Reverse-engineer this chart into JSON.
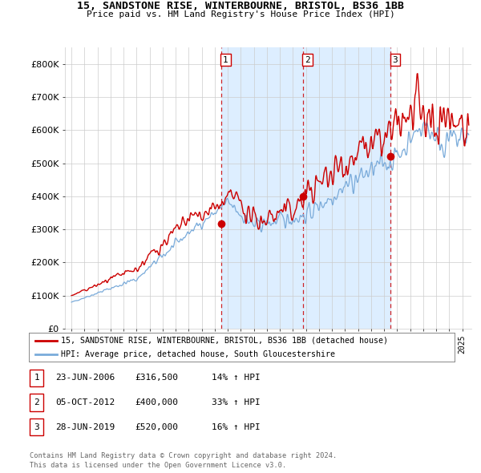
{
  "title": "15, SANDSTONE RISE, WINTERBOURNE, BRISTOL, BS36 1BB",
  "subtitle": "Price paid vs. HM Land Registry's House Price Index (HPI)",
  "legend_line1": "15, SANDSTONE RISE, WINTERBOURNE, BRISTOL, BS36 1BB (detached house)",
  "legend_line2": "HPI: Average price, detached house, South Gloucestershire",
  "sale_year_nums": [
    2006.474,
    2012.756,
    2019.493
  ],
  "sale_prices": [
    316500,
    400000,
    520000
  ],
  "sale_labels": [
    "1",
    "2",
    "3"
  ],
  "sale_info": [
    [
      "1",
      "23-JUN-2006",
      "£316,500",
      "14% ↑ HPI"
    ],
    [
      "2",
      "05-OCT-2012",
      "£400,000",
      "33% ↑ HPI"
    ],
    [
      "3",
      "28-JUN-2019",
      "£520,000",
      "16% ↑ HPI"
    ]
  ],
  "footer1": "Contains HM Land Registry data © Crown copyright and database right 2024.",
  "footer2": "This data is licensed under the Open Government Licence v3.0.",
  "red_color": "#cc0000",
  "blue_color": "#7aabda",
  "shade_color": "#ddeeff",
  "background_color": "#ffffff",
  "grid_color": "#cccccc",
  "ylim": [
    0,
    850000
  ],
  "yticks": [
    0,
    100000,
    200000,
    300000,
    400000,
    500000,
    600000,
    700000,
    800000
  ],
  "xmin": 1994.5,
  "xmax": 2025.7
}
